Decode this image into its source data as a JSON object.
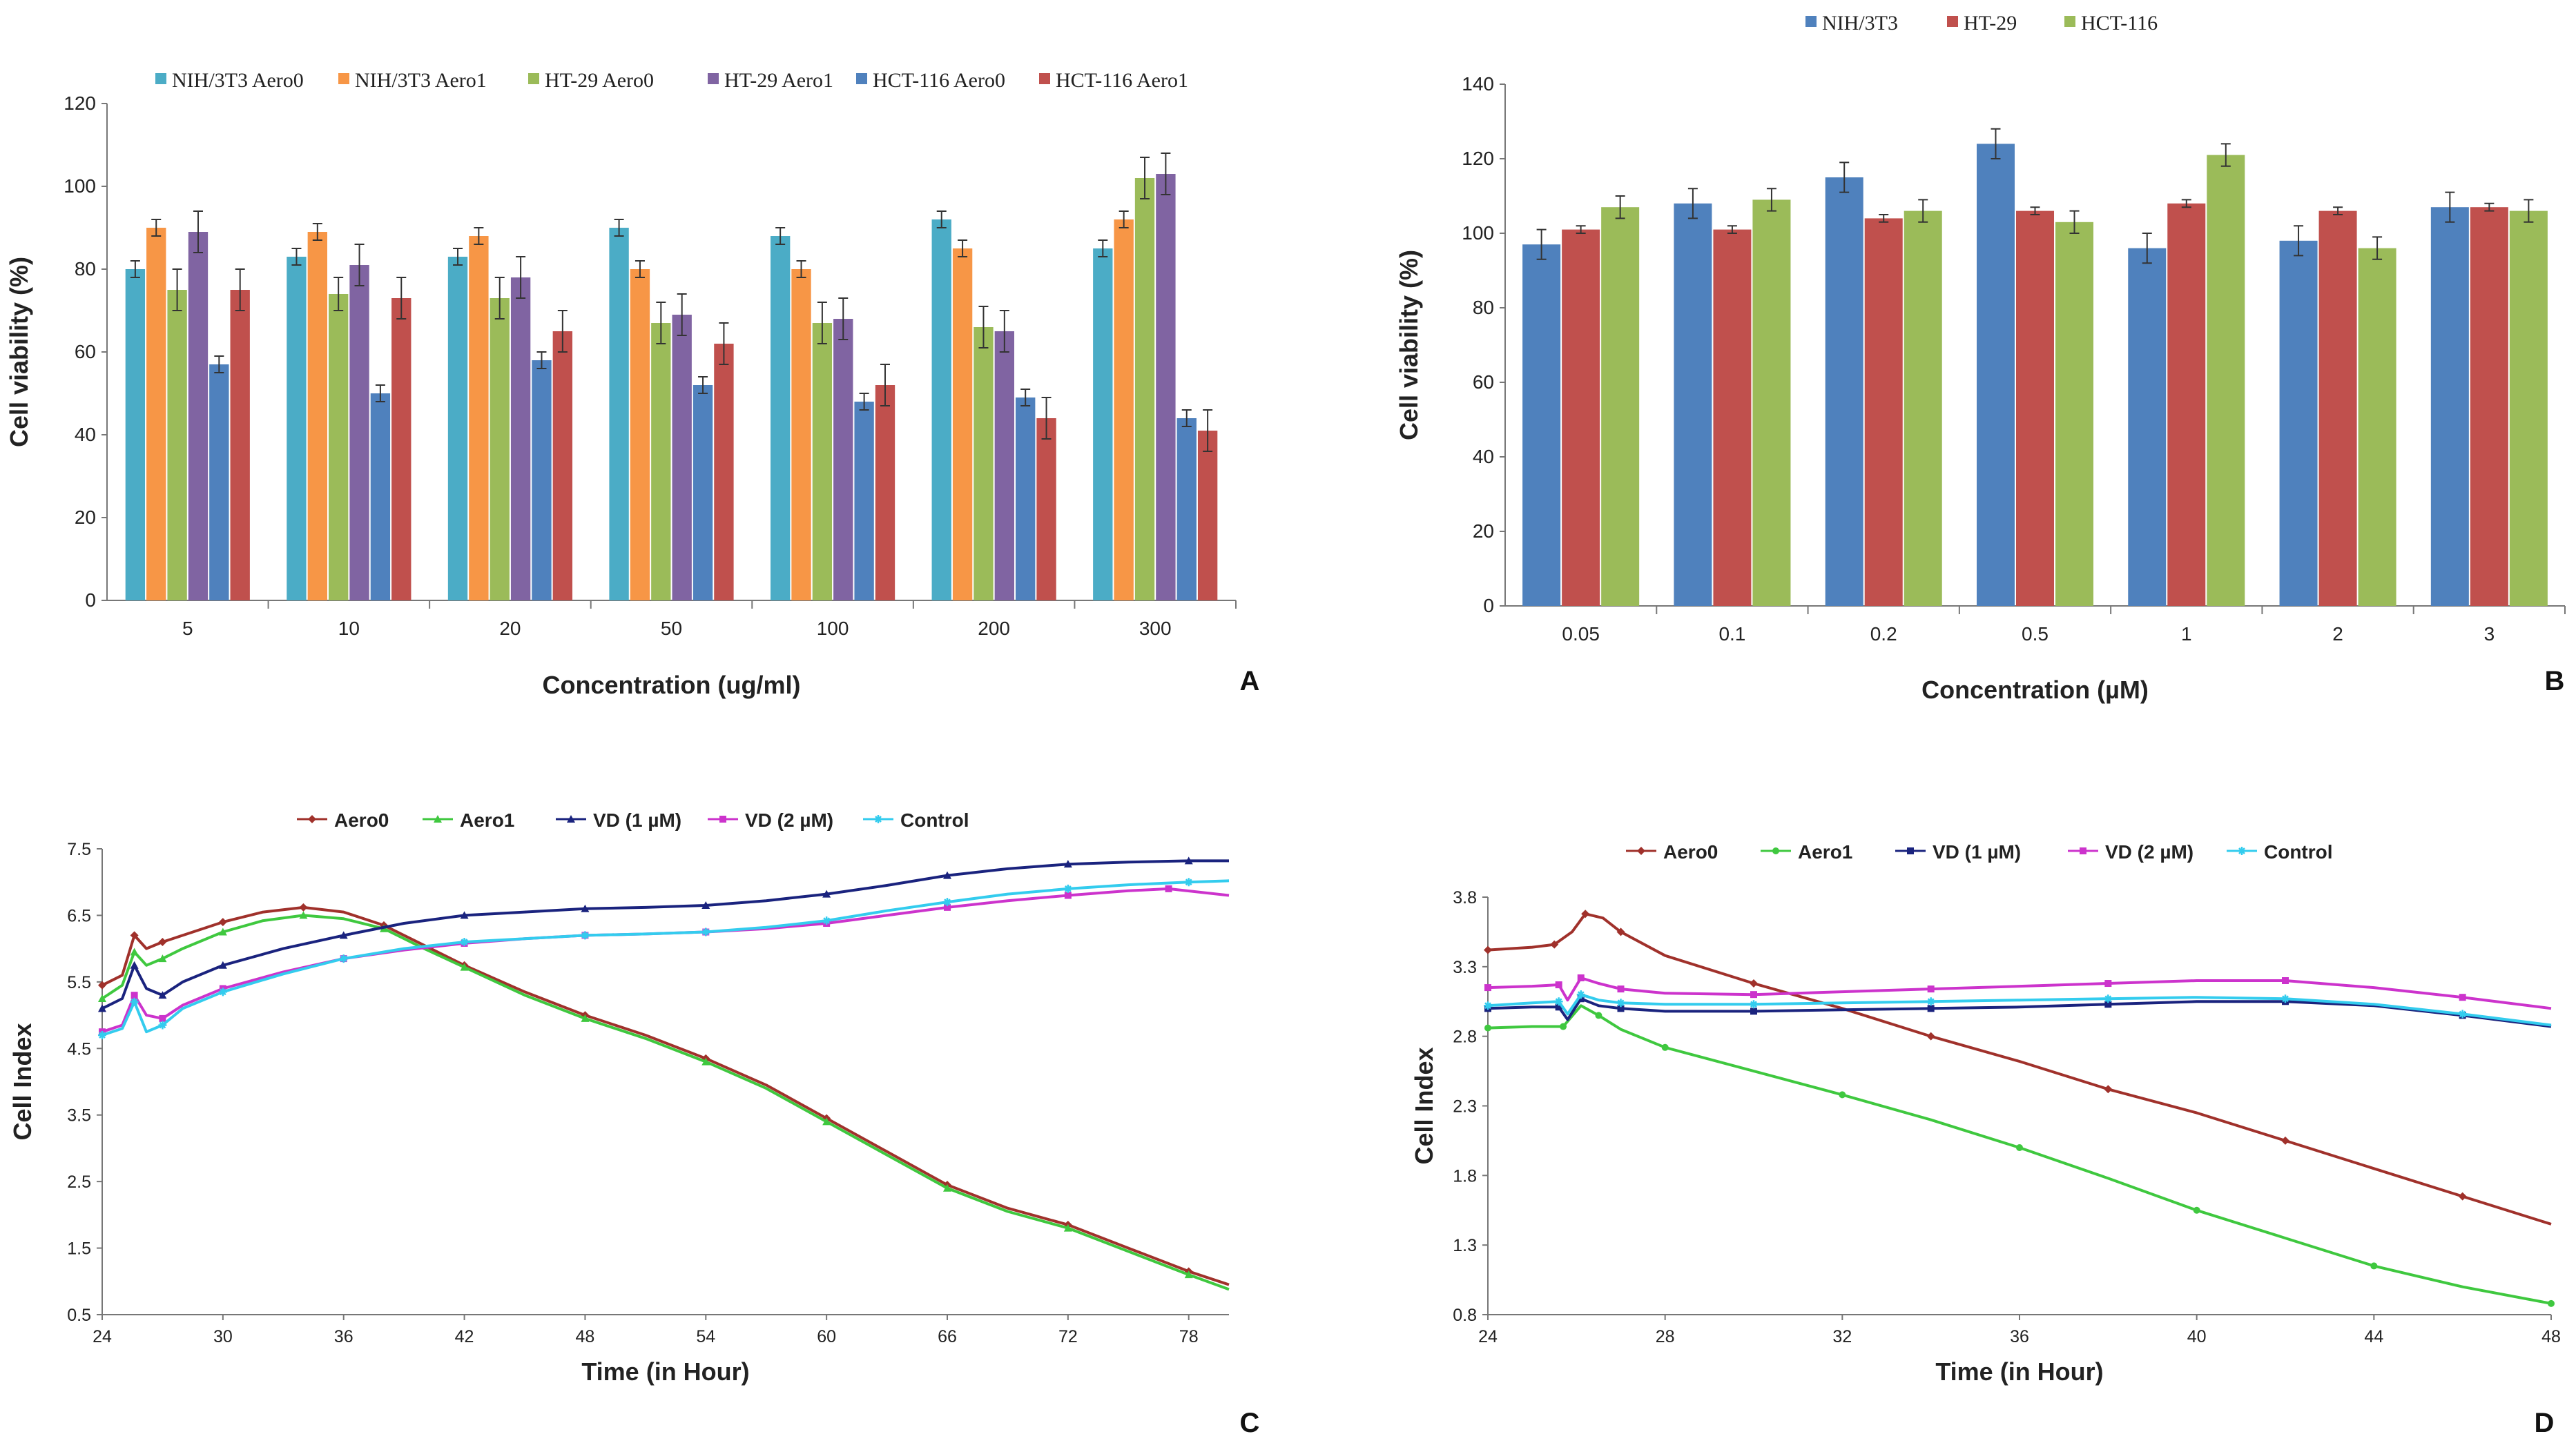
{
  "chart_data": [
    {
      "panel": "A",
      "type": "bar",
      "xlabel": "Concentration (ug/ml)",
      "ylabel": "Cell viability (%)",
      "ylim": [
        0,
        120
      ],
      "yticks": [
        0,
        20,
        40,
        60,
        80,
        100,
        120
      ],
      "categories": [
        "5",
        "10",
        "20",
        "50",
        "100",
        "200",
        "300"
      ],
      "legend_position": "top",
      "series": [
        {
          "name": "NIH/3T3 Aero0",
          "color": "#4BACC6",
          "values": [
            80,
            83,
            83,
            90,
            88,
            92,
            85
          ],
          "errors": [
            2,
            2,
            2,
            2,
            2,
            2,
            2
          ]
        },
        {
          "name": "NIH/3T3 Aero1",
          "color": "#F79646",
          "values": [
            90,
            89,
            88,
            80,
            80,
            85,
            92
          ],
          "errors": [
            2,
            2,
            2,
            2,
            2,
            2,
            2
          ]
        },
        {
          "name": "HT-29 Aero0",
          "color": "#9BBB59",
          "values": [
            75,
            74,
            73,
            67,
            67,
            66,
            102
          ],
          "errors": [
            5,
            4,
            5,
            5,
            5,
            5,
            5
          ]
        },
        {
          "name": "HT-29 Aero1",
          "color": "#8064A2",
          "values": [
            89,
            81,
            78,
            69,
            68,
            65,
            103
          ],
          "errors": [
            5,
            5,
            5,
            5,
            5,
            5,
            5
          ]
        },
        {
          "name": "HCT-116 Aero0",
          "color": "#4F81BD",
          "values": [
            57,
            50,
            58,
            52,
            48,
            49,
            44
          ],
          "errors": [
            2,
            2,
            2,
            2,
            2,
            2,
            2
          ]
        },
        {
          "name": "HCT-116 Aero1",
          "color": "#C0504D",
          "values": [
            75,
            73,
            65,
            62,
            52,
            44,
            41
          ],
          "errors": [
            5,
            5,
            5,
            5,
            5,
            5,
            5
          ]
        }
      ]
    },
    {
      "panel": "B",
      "type": "bar",
      "xlabel": "Concentration (µM)",
      "ylabel": "Cell viability (%)",
      "ylim": [
        0,
        140
      ],
      "yticks": [
        0,
        20,
        40,
        60,
        80,
        100,
        120,
        140
      ],
      "categories": [
        "0.05",
        "0.1",
        "0.2",
        "0.5",
        "1",
        "2",
        "3"
      ],
      "legend_position": "top",
      "series": [
        {
          "name": "NIH/3T3",
          "color": "#4F81BD",
          "values": [
            97,
            108,
            115,
            124,
            96,
            98,
            107
          ],
          "errors": [
            4,
            4,
            4,
            4,
            4,
            4,
            4
          ]
        },
        {
          "name": "HT-29",
          "color": "#C0504D",
          "values": [
            101,
            101,
            104,
            106,
            108,
            106,
            107
          ],
          "errors": [
            1,
            1,
            1,
            1,
            1,
            1,
            1
          ]
        },
        {
          "name": "HCT-116",
          "color": "#9BBB59",
          "values": [
            107,
            109,
            106,
            103,
            121,
            96,
            106
          ],
          "errors": [
            3,
            3,
            3,
            3,
            3,
            3,
            3
          ]
        }
      ]
    },
    {
      "panel": "C",
      "type": "line",
      "xlabel": "Time (in Hour)",
      "ylabel": "Cell Index",
      "xlim": [
        24,
        80
      ],
      "ylim": [
        0.5,
        7.5
      ],
      "xticks": [
        24,
        30,
        36,
        42,
        48,
        54,
        60,
        66,
        72,
        78
      ],
      "yticks": [
        "0.5",
        "1.5",
        "2.5",
        "3.5",
        "4.5",
        "5.5",
        "6.5",
        "7.5"
      ],
      "legend_position": "top",
      "series": [
        {
          "name": "Aero0",
          "color": "#A0312B",
          "marker": "diamond",
          "x": [
            24,
            25,
            25.6,
            26.2,
            27,
            28,
            30,
            32,
            34,
            36,
            38,
            40,
            42,
            45,
            48,
            51,
            54,
            57,
            60,
            63,
            66,
            69,
            72,
            75,
            78,
            80
          ],
          "y": [
            5.45,
            5.6,
            6.2,
            6.0,
            6.1,
            6.2,
            6.4,
            6.55,
            6.62,
            6.55,
            6.35,
            6.05,
            5.75,
            5.35,
            5.0,
            4.7,
            4.35,
            3.95,
            3.45,
            2.95,
            2.45,
            2.1,
            1.85,
            1.5,
            1.15,
            0.95
          ]
        },
        {
          "name": "Aero1",
          "color": "#3FC83F",
          "marker": "triangle",
          "x": [
            24,
            25,
            25.6,
            26.2,
            27,
            28,
            30,
            32,
            34,
            36,
            38,
            40,
            42,
            45,
            48,
            51,
            54,
            57,
            60,
            63,
            66,
            69,
            72,
            75,
            78,
            80
          ],
          "y": [
            5.25,
            5.45,
            5.95,
            5.75,
            5.85,
            6.0,
            6.25,
            6.42,
            6.5,
            6.45,
            6.3,
            6.0,
            5.72,
            5.3,
            4.95,
            4.65,
            4.3,
            3.9,
            3.4,
            2.9,
            2.4,
            2.05,
            1.8,
            1.45,
            1.1,
            0.88
          ]
        },
        {
          "name": "VD (1 µM)",
          "color": "#1A237E",
          "marker": "triangle",
          "x": [
            24,
            25,
            25.6,
            26.2,
            27,
            28,
            30,
            33,
            36,
            39,
            42,
            45,
            48,
            51,
            54,
            57,
            60,
            63,
            66,
            69,
            72,
            75,
            78,
            80
          ],
          "y": [
            5.1,
            5.25,
            5.75,
            5.4,
            5.3,
            5.5,
            5.75,
            6.0,
            6.2,
            6.38,
            6.5,
            6.55,
            6.6,
            6.62,
            6.65,
            6.72,
            6.82,
            6.95,
            7.1,
            7.2,
            7.27,
            7.3,
            7.32,
            7.32
          ]
        },
        {
          "name": "VD (2 µM)",
          "color": "#CC33CC",
          "marker": "square",
          "x": [
            24,
            25,
            25.6,
            26.2,
            27,
            28,
            30,
            33,
            36,
            39,
            42,
            45,
            48,
            51,
            54,
            57,
            60,
            63,
            66,
            69,
            72,
            75,
            77,
            80
          ],
          "y": [
            4.75,
            4.85,
            5.3,
            5.0,
            4.95,
            5.15,
            5.4,
            5.65,
            5.85,
            5.98,
            6.08,
            6.15,
            6.2,
            6.22,
            6.25,
            6.3,
            6.38,
            6.5,
            6.62,
            6.72,
            6.8,
            6.87,
            6.9,
            6.8
          ]
        },
        {
          "name": "Control",
          "color": "#33CCEE",
          "marker": "star",
          "x": [
            24,
            25,
            25.6,
            26.2,
            27,
            28,
            30,
            33,
            36,
            39,
            42,
            45,
            48,
            51,
            54,
            57,
            60,
            63,
            66,
            69,
            72,
            75,
            78,
            80
          ],
          "y": [
            4.7,
            4.8,
            5.2,
            4.75,
            4.85,
            5.1,
            5.35,
            5.62,
            5.85,
            6.0,
            6.1,
            6.15,
            6.2,
            6.22,
            6.25,
            6.32,
            6.42,
            6.57,
            6.7,
            6.82,
            6.9,
            6.96,
            7.0,
            7.02
          ]
        }
      ]
    },
    {
      "panel": "D",
      "type": "line",
      "xlabel": "Time (in Hour)",
      "ylabel": "Cell Index",
      "xlim": [
        24,
        48
      ],
      "ylim": [
        0.8,
        3.8
      ],
      "xticks": [
        24,
        28,
        32,
        36,
        40,
        44,
        48
      ],
      "yticks": [
        "0.8",
        "1.3",
        "1.8",
        "2.3",
        "2.8",
        "3.3",
        "3.8"
      ],
      "legend_position": "top",
      "series": [
        {
          "name": "Aero0",
          "color": "#A0312B",
          "marker": "diamond",
          "x": [
            24,
            25,
            25.5,
            25.9,
            26.2,
            26.6,
            27,
            28,
            30,
            32,
            34,
            36,
            38,
            40,
            42,
            44,
            46,
            48
          ],
          "y": [
            3.42,
            3.44,
            3.46,
            3.55,
            3.68,
            3.65,
            3.55,
            3.38,
            3.18,
            3.0,
            2.8,
            2.62,
            2.42,
            2.25,
            2.05,
            1.85,
            1.65,
            1.45
          ]
        },
        {
          "name": "Aero1",
          "color": "#3FC83F",
          "marker": "circle",
          "x": [
            24,
            25,
            25.7,
            26.1,
            26.5,
            27,
            28,
            30,
            32,
            34,
            36,
            38,
            40,
            42,
            44,
            46,
            48
          ],
          "y": [
            2.86,
            2.87,
            2.87,
            3.02,
            2.95,
            2.85,
            2.72,
            2.55,
            2.38,
            2.2,
            2.0,
            1.78,
            1.55,
            1.35,
            1.15,
            1.0,
            0.88
          ]
        },
        {
          "name": "VD (1 µM)",
          "color": "#1A237E",
          "marker": "square",
          "x": [
            24,
            25,
            25.6,
            25.8,
            26.1,
            26.5,
            27,
            28,
            30,
            32,
            34,
            36,
            38,
            40,
            42,
            44,
            46,
            48
          ],
          "y": [
            3.0,
            3.01,
            3.01,
            2.92,
            3.07,
            3.02,
            3.0,
            2.98,
            2.98,
            2.99,
            3.0,
            3.01,
            3.03,
            3.05,
            3.05,
            3.02,
            2.95,
            2.87
          ]
        },
        {
          "name": "VD (2 µM)",
          "color": "#CC33CC",
          "marker": "square",
          "x": [
            24,
            25,
            25.6,
            25.8,
            26.1,
            26.5,
            27,
            28,
            30,
            32,
            34,
            36,
            38,
            40,
            42,
            44,
            46,
            48
          ],
          "y": [
            3.15,
            3.16,
            3.17,
            3.06,
            3.22,
            3.18,
            3.14,
            3.11,
            3.1,
            3.12,
            3.14,
            3.16,
            3.18,
            3.2,
            3.2,
            3.15,
            3.08,
            3.0
          ]
        },
        {
          "name": "Control",
          "color": "#33CCEE",
          "marker": "star",
          "x": [
            24,
            25,
            25.6,
            25.8,
            26.1,
            26.5,
            27,
            28,
            30,
            32,
            34,
            36,
            38,
            40,
            42,
            44,
            46,
            48
          ],
          "y": [
            3.02,
            3.04,
            3.05,
            2.96,
            3.1,
            3.06,
            3.04,
            3.03,
            3.03,
            3.04,
            3.05,
            3.06,
            3.07,
            3.08,
            3.07,
            3.03,
            2.96,
            2.88
          ]
        }
      ]
    }
  ]
}
